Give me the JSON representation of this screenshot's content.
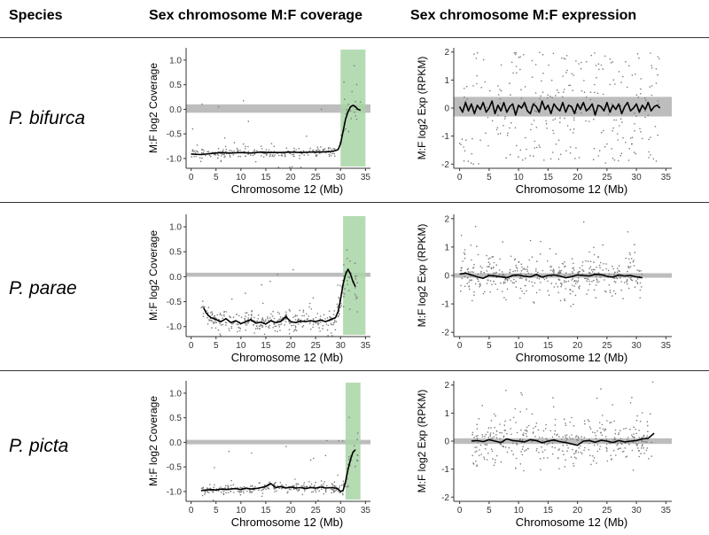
{
  "header": {
    "species_label": "Species",
    "coverage_label": "Sex chromosome M:F coverage",
    "expression_label": "Sex chromosome M:F expression"
  },
  "rows": [
    {
      "species": "P. bifurca"
    },
    {
      "species": "P. parae"
    },
    {
      "species": "P. picta"
    }
  ],
  "colors": {
    "band": "#bdbdbd",
    "shade": "#a8d5a4",
    "points": "#7a7a7a",
    "line": "#000000"
  },
  "chart_data": [
    {
      "type": "scatter",
      "panel": "coverage",
      "species": "P. bifurca",
      "xlabel": "Chromosome 12 (Mb)",
      "ylabel": "M:F log2 Coverage",
      "xlim": [
        -1,
        36
      ],
      "ylim": [
        -1.2,
        1.25
      ],
      "xticks": [
        0,
        5,
        10,
        15,
        20,
        25,
        30,
        35
      ],
      "xtick_labels": [
        "0",
        "5",
        "10",
        "15",
        "20",
        "25",
        "30",
        "35"
      ],
      "yticks": [
        -1.0,
        -0.5,
        0.0,
        0.5,
        1.0
      ],
      "ytick_labels": [
        "-1.0",
        "-0.5",
        "0.0",
        "0.5",
        "1.0"
      ],
      "ref_band": [
        -0.07,
        0.1
      ],
      "highlight_x": [
        30,
        35
      ],
      "smooth": {
        "x": [
          0,
          2,
          4,
          6,
          8,
          10,
          12,
          14,
          16,
          18,
          20,
          22,
          24,
          26,
          28,
          29,
          29.5,
          30,
          30.5,
          31,
          31.5,
          32,
          32.5,
          33,
          33.5,
          34
        ],
        "y": [
          -0.91,
          -0.92,
          -0.9,
          -0.88,
          -0.89,
          -0.88,
          -0.89,
          -0.87,
          -0.88,
          -0.88,
          -0.87,
          -0.88,
          -0.87,
          -0.87,
          -0.86,
          -0.84,
          -0.82,
          -0.7,
          -0.45,
          -0.2,
          -0.05,
          0.05,
          0.08,
          0.05,
          0.0,
          -0.02
        ]
      },
      "scatter_model": {
        "x_range": [
          0,
          34
        ],
        "count": 240,
        "noise": 0.06,
        "outliers": 16,
        "seed": 3
      }
    },
    {
      "type": "scatter",
      "panel": "expression",
      "species": "P. bifurca",
      "xlabel": "Chromosome 12 (Mb)",
      "ylabel": "M:F log2 Exp (RPKM)",
      "xlim": [
        -1,
        36
      ],
      "ylim": [
        -2.15,
        2.15
      ],
      "xticks": [
        0,
        5,
        10,
        15,
        20,
        25,
        30,
        35
      ],
      "xtick_labels": [
        "0",
        "5",
        "10",
        "15",
        "20",
        "25",
        "30",
        "35"
      ],
      "yticks": [
        -2,
        -1,
        0,
        1,
        2
      ],
      "ytick_labels": [
        "-2",
        "-1",
        "0",
        "1",
        "2"
      ],
      "ref_band": [
        -0.3,
        0.4
      ],
      "smooth": {
        "x": [
          0,
          0.5,
          1,
          1.5,
          2,
          2.5,
          3,
          3.5,
          4,
          4.5,
          5,
          5.5,
          6,
          6.5,
          7,
          7.5,
          8,
          8.5,
          9,
          9.5,
          10,
          10.5,
          11,
          11.5,
          12,
          12.5,
          13,
          13.5,
          14,
          14.5,
          15,
          15.5,
          16,
          16.5,
          17,
          17.5,
          18,
          18.5,
          19,
          19.5,
          20,
          20.5,
          21,
          21.5,
          22,
          22.5,
          23,
          23.5,
          24,
          24.5,
          25,
          25.5,
          26,
          26.5,
          27,
          27.5,
          28,
          28.5,
          29,
          29.5,
          30,
          30.5,
          31,
          31.5,
          32,
          32.5,
          33,
          33.5,
          34
        ],
        "y": [
          0.05,
          -0.15,
          0.2,
          -0.1,
          0.15,
          -0.2,
          0.1,
          -0.05,
          0.2,
          -0.15,
          0.0,
          0.25,
          -0.2,
          0.1,
          -0.1,
          0.2,
          -0.15,
          0.05,
          0.15,
          -0.25,
          0.1,
          0.0,
          0.2,
          -0.1,
          -0.2,
          0.15,
          0.05,
          -0.15,
          0.25,
          -0.05,
          0.1,
          -0.2,
          0.15,
          0.0,
          -0.1,
          0.2,
          -0.15,
          0.1,
          0.05,
          -0.2,
          0.15,
          -0.05,
          0.2,
          -0.1,
          0.0,
          0.15,
          -0.25,
          0.1,
          0.05,
          -0.1,
          0.2,
          -0.15,
          0.1,
          -0.05,
          0.15,
          -0.2,
          0.05,
          0.2,
          -0.1,
          0.0,
          0.15,
          -0.15,
          0.1,
          -0.05,
          0.2,
          -0.1,
          0.05,
          0.1,
          0.0
        ]
      },
      "scatter_model": {
        "x_range": [
          0,
          34
        ],
        "count": 300,
        "uniform_y": [
          -2,
          2
        ],
        "seed": 11
      }
    },
    {
      "type": "scatter",
      "panel": "coverage",
      "species": "P. parae",
      "xlabel": "Chromosome 12 (Mb)",
      "ylabel": "M:F log2 Coverage",
      "xlim": [
        -1,
        36
      ],
      "ylim": [
        -1.2,
        1.25
      ],
      "xticks": [
        0,
        5,
        10,
        15,
        20,
        25,
        30,
        35
      ],
      "xtick_labels": [
        "0",
        "5",
        "10",
        "15",
        "20",
        "25",
        "30",
        "35"
      ],
      "yticks": [
        -1.0,
        -0.5,
        0.0,
        0.5,
        1.0
      ],
      "ytick_labels": [
        "-1.0",
        "-0.5",
        "0.0",
        "0.5",
        "1.0"
      ],
      "ref_band": [
        0.0,
        0.08
      ],
      "highlight_x": [
        30.5,
        35
      ],
      "smooth": {
        "x": [
          2.5,
          3,
          3.5,
          4,
          5,
          6,
          7,
          8,
          9,
          10,
          11,
          12,
          13,
          14,
          15,
          16,
          17,
          18,
          19,
          20,
          21,
          22,
          23,
          24,
          25,
          26,
          27,
          28,
          29,
          29.5,
          30,
          30.5,
          31,
          31.5,
          32,
          32.5,
          33
        ],
        "y": [
          -0.62,
          -0.72,
          -0.78,
          -0.82,
          -0.86,
          -0.9,
          -0.84,
          -0.92,
          -0.88,
          -0.94,
          -0.9,
          -0.86,
          -0.93,
          -0.91,
          -0.95,
          -0.88,
          -0.92,
          -0.9,
          -0.8,
          -0.9,
          -0.92,
          -0.89,
          -0.9,
          -0.88,
          -0.9,
          -0.87,
          -0.9,
          -0.86,
          -0.82,
          -0.7,
          -0.45,
          -0.15,
          0.05,
          0.15,
          0.05,
          -0.1,
          -0.2
        ]
      },
      "scatter_model": {
        "x_range": [
          2,
          33.5
        ],
        "count": 360,
        "noise": 0.1,
        "outliers": 28,
        "seed": 5
      }
    },
    {
      "type": "scatter",
      "panel": "expression",
      "species": "P. parae",
      "xlabel": "Chromosome 12 (Mb)",
      "ylabel": "M:F log2 Exp (RPKM)",
      "xlim": [
        -1,
        36
      ],
      "ylim": [
        -2.15,
        2.15
      ],
      "xticks": [
        0,
        5,
        10,
        15,
        20,
        25,
        30,
        35
      ],
      "xtick_labels": [
        "0",
        "5",
        "10",
        "15",
        "20",
        "25",
        "30",
        "35"
      ],
      "yticks": [
        -2,
        -1,
        0,
        1,
        2
      ],
      "ytick_labels": [
        "-2",
        "-1",
        "0",
        "1",
        "2"
      ],
      "ref_band": [
        -0.08,
        0.08
      ],
      "smooth": {
        "x": [
          0,
          1,
          2,
          3,
          4,
          5,
          6,
          7,
          8,
          9,
          10,
          11,
          12,
          13,
          14,
          15,
          16,
          17,
          18,
          19,
          20,
          21,
          22,
          23,
          24,
          25,
          26,
          27,
          28,
          29,
          30,
          31
        ],
        "y": [
          0.05,
          0.08,
          0.02,
          -0.05,
          -0.1,
          0.0,
          -0.02,
          -0.05,
          -0.08,
          0.0,
          0.02,
          -0.03,
          -0.05,
          0.03,
          -0.06,
          0.0,
          0.02,
          -0.02,
          -0.08,
          -0.04,
          0.02,
          0.0,
          -0.02,
          0.04,
          0.03,
          -0.03,
          -0.06,
          0.02,
          -0.02,
          0.0,
          -0.05,
          -0.08
        ]
      },
      "scatter_model": {
        "x_range": [
          0,
          31
        ],
        "count": 420,
        "noise": 0.35,
        "outliers": 30,
        "seed": 17
      }
    },
    {
      "type": "scatter",
      "panel": "coverage",
      "species": "P. picta",
      "xlabel": "Chromosome 12 (Mb)",
      "ylabel": "M:F log2 Coverage",
      "xlim": [
        -1,
        36
      ],
      "ylim": [
        -1.2,
        1.25
      ],
      "xticks": [
        0,
        5,
        10,
        15,
        20,
        25,
        30,
        35
      ],
      "xtick_labels": [
        "0",
        "5",
        "10",
        "15",
        "20",
        "25",
        "30",
        "35"
      ],
      "yticks": [
        -1.0,
        -0.5,
        0.0,
        0.5,
        1.0
      ],
      "ytick_labels": [
        "-1.0",
        "-0.5",
        "0.0",
        "0.5",
        "1.0"
      ],
      "ref_band": [
        -0.04,
        0.05
      ],
      "highlight_x": [
        31,
        34
      ],
      "smooth": {
        "x": [
          2,
          3,
          4,
          5,
          6,
          7,
          8,
          9,
          10,
          11,
          12,
          13,
          14,
          15,
          16,
          17,
          18,
          19,
          20,
          21,
          22,
          23,
          24,
          25,
          26,
          27,
          28,
          29,
          29.5,
          30,
          30.5,
          31,
          31.5,
          32,
          32.5,
          33
        ],
        "y": [
          -0.98,
          -0.97,
          -0.96,
          -0.97,
          -0.95,
          -0.96,
          -0.95,
          -0.94,
          -0.96,
          -0.93,
          -0.95,
          -0.94,
          -0.92,
          -0.9,
          -0.84,
          -0.92,
          -0.9,
          -0.93,
          -0.91,
          -0.93,
          -0.92,
          -0.94,
          -0.92,
          -0.93,
          -0.91,
          -0.93,
          -0.92,
          -0.93,
          -0.95,
          -1.0,
          -0.98,
          -0.8,
          -0.55,
          -0.35,
          -0.2,
          -0.15
        ]
      },
      "scatter_model": {
        "x_range": [
          2,
          33.5
        ],
        "count": 300,
        "noise": 0.05,
        "outliers": 18,
        "seed": 23
      }
    },
    {
      "type": "scatter",
      "panel": "expression",
      "species": "P. picta",
      "xlabel": "Chromosome 12 (Mb)",
      "ylabel": "M:F log2 Exp (RPKM)",
      "xlim": [
        -1,
        36
      ],
      "ylim": [
        -2.15,
        2.15
      ],
      "xticks": [
        0,
        5,
        10,
        15,
        20,
        25,
        30,
        35
      ],
      "xtick_labels": [
        "0",
        "5",
        "10",
        "15",
        "20",
        "25",
        "30",
        "35"
      ],
      "yticks": [
        -2,
        -1,
        0,
        1,
        2
      ],
      "ytick_labels": [
        "-2",
        "-1",
        "0",
        "1",
        "2"
      ],
      "ref_band": [
        -0.1,
        0.1
      ],
      "smooth": {
        "x": [
          2,
          3,
          4,
          5,
          6,
          7,
          8,
          9,
          10,
          11,
          12,
          13,
          14,
          15,
          16,
          17,
          18,
          19,
          20,
          21,
          22,
          23,
          24,
          25,
          26,
          27,
          28,
          29,
          30,
          31,
          32,
          33
        ],
        "y": [
          0.0,
          0.02,
          -0.02,
          0.05,
          0.0,
          -0.05,
          0.08,
          0.02,
          0.0,
          -0.03,
          0.05,
          0.02,
          -0.06,
          0.0,
          0.04,
          -0.02,
          -0.05,
          -0.1,
          -0.15,
          0.0,
          0.02,
          -0.04,
          0.03,
          0.0,
          -0.05,
          0.02,
          -0.03,
          0.0,
          0.02,
          0.08,
          0.1,
          0.28
        ]
      },
      "scatter_model": {
        "x_range": [
          2,
          33
        ],
        "count": 360,
        "noise": 0.4,
        "outliers": 40,
        "seed": 29
      }
    }
  ]
}
